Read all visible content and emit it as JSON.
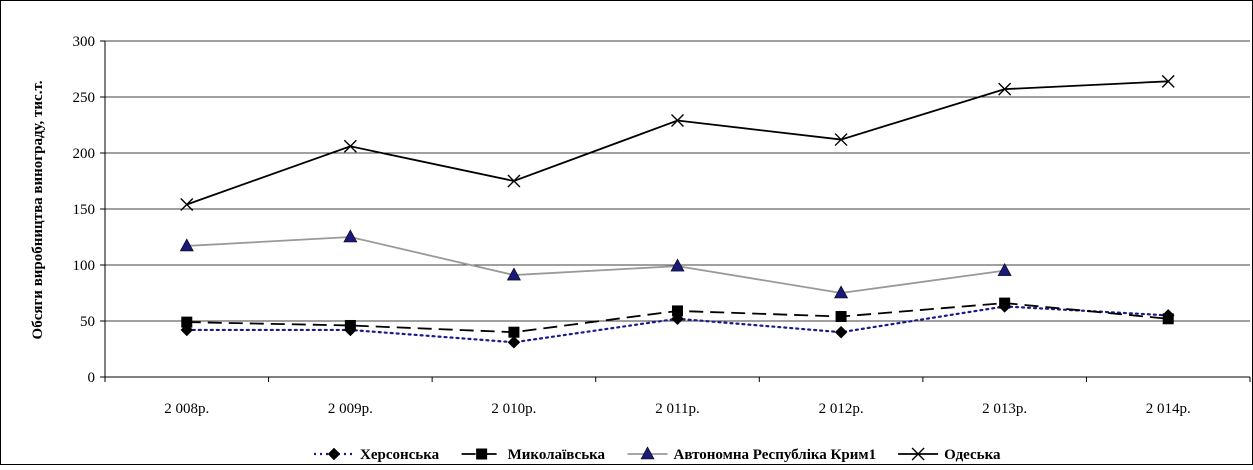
{
  "chart_data": {
    "type": "line",
    "title": "",
    "xlabel": "",
    "ylabel": "Обсяги виробництва винограду, тис.т.",
    "ylim": [
      0,
      300
    ],
    "yticks": [
      "0",
      "50",
      "100",
      "150",
      "200",
      "250",
      "300"
    ],
    "categories": [
      "2 008р.",
      "2 009р.",
      "2 010р.",
      "2 011р.",
      "2 012р.",
      "2 013р.",
      "2 014р."
    ],
    "grid": true,
    "legend_position": "bottom",
    "series": [
      {
        "name": "Херсонська",
        "values": [
          42,
          42,
          31,
          52,
          40,
          63,
          55
        ],
        "color": "#1a1a8c",
        "line_style": "dotted",
        "marker": "diamond"
      },
      {
        "name": "Миколаївська",
        "values": [
          49,
          46,
          40,
          59,
          54,
          66,
          52
        ],
        "color": "#000000",
        "line_style": "dashed",
        "marker": "square"
      },
      {
        "name": "Автономна Республіка Крим1",
        "values": [
          117,
          125,
          91,
          99,
          75,
          95,
          null
        ],
        "color": "#999999",
        "marker_color": "#1a1a7a",
        "line_style": "solid",
        "marker": "triangle"
      },
      {
        "name": "Одеська",
        "values": [
          154,
          206,
          175,
          229,
          212,
          257,
          264
        ],
        "color": "#000000",
        "line_style": "solid",
        "marker": "x"
      }
    ]
  }
}
